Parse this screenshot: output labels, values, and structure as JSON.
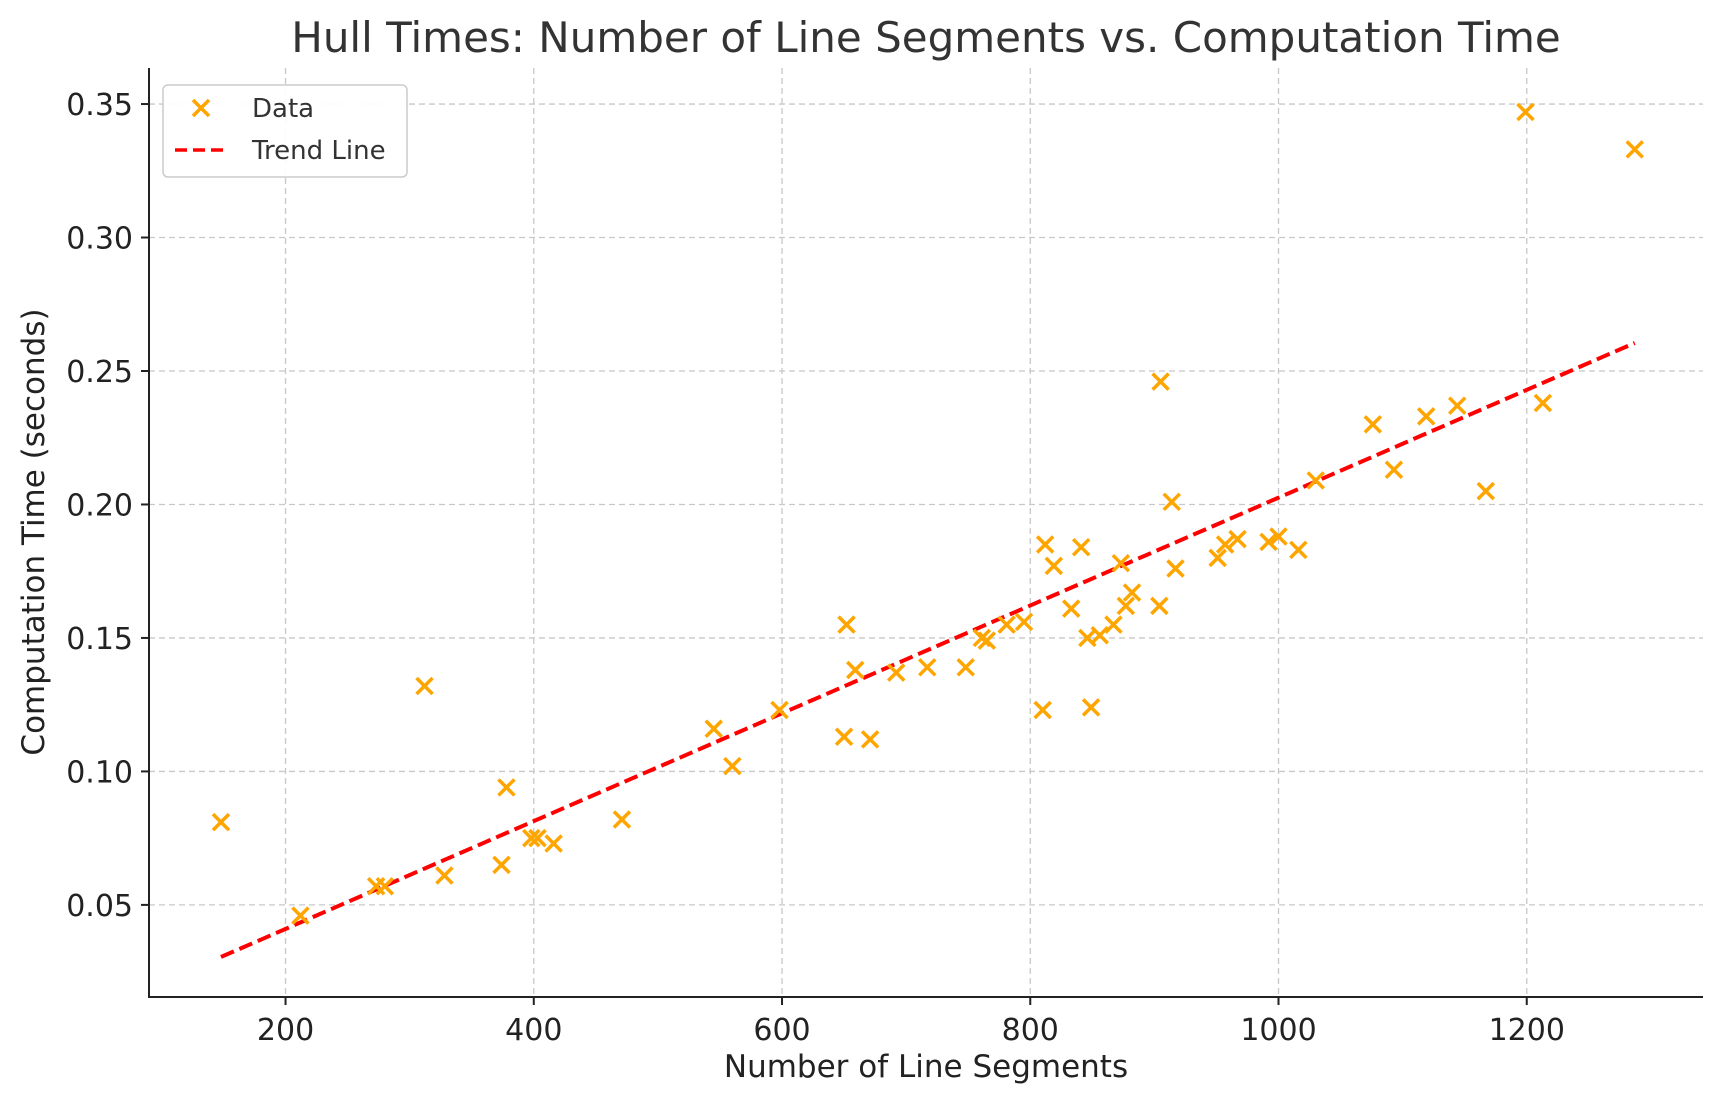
{
  "chart_data": {
    "type": "scatter",
    "title": "Hull Times: Number of Line Segments vs. Computation Time",
    "xlabel": "Number of Line Segments",
    "ylabel": "Computation Time (seconds)",
    "xlim": [
      90,
      1342
    ],
    "ylim": [
      0.0155,
      0.3635
    ],
    "xticks": [
      200,
      400,
      600,
      800,
      1000,
      1200
    ],
    "xtick_labels": [
      "200",
      "400",
      "600",
      "800",
      "1000",
      "1200"
    ],
    "yticks": [
      0.05,
      0.1,
      0.15,
      0.2,
      0.25,
      0.3,
      0.35
    ],
    "ytick_labels": [
      "0.05",
      "0.10",
      "0.15",
      "0.20",
      "0.25",
      "0.30",
      "0.35"
    ],
    "grid": true,
    "legend": "top-left",
    "colors": {
      "data": "#FFA500",
      "trend": "#FF0000"
    },
    "series": [
      {
        "name": "Data",
        "kind": "scatter",
        "marker": "x",
        "points": [
          [
            148,
            0.081
          ],
          [
            212,
            0.046
          ],
          [
            273,
            0.057
          ],
          [
            280,
            0.057
          ],
          [
            312,
            0.132
          ],
          [
            328,
            0.061
          ],
          [
            374,
            0.065
          ],
          [
            378,
            0.094
          ],
          [
            398,
            0.075
          ],
          [
            403,
            0.075
          ],
          [
            416,
            0.073
          ],
          [
            471,
            0.082
          ],
          [
            545,
            0.116
          ],
          [
            560,
            0.102
          ],
          [
            598,
            0.123
          ],
          [
            650,
            0.113
          ],
          [
            652,
            0.155
          ],
          [
            659,
            0.138
          ],
          [
            671,
            0.112
          ],
          [
            692,
            0.137
          ],
          [
            717,
            0.139
          ],
          [
            748,
            0.139
          ],
          [
            761,
            0.15
          ],
          [
            765,
            0.149
          ],
          [
            781,
            0.155
          ],
          [
            795,
            0.156
          ],
          [
            810,
            0.123
          ],
          [
            812,
            0.185
          ],
          [
            819,
            0.177
          ],
          [
            833,
            0.161
          ],
          [
            841,
            0.184
          ],
          [
            846,
            0.15
          ],
          [
            849,
            0.124
          ],
          [
            856,
            0.151
          ],
          [
            867,
            0.155
          ],
          [
            873,
            0.178
          ],
          [
            877,
            0.162
          ],
          [
            882,
            0.167
          ],
          [
            904,
            0.162
          ],
          [
            905,
            0.246
          ],
          [
            914,
            0.201
          ],
          [
            917,
            0.176
          ],
          [
            951,
            0.18
          ],
          [
            957,
            0.185
          ],
          [
            967,
            0.187
          ],
          [
            992,
            0.186
          ],
          [
            1000,
            0.188
          ],
          [
            1016,
            0.183
          ],
          [
            1030,
            0.209
          ],
          [
            1076,
            0.23
          ],
          [
            1093,
            0.213
          ],
          [
            1119,
            0.233
          ],
          [
            1144,
            0.237
          ],
          [
            1167,
            0.205
          ],
          [
            1199,
            0.347
          ],
          [
            1213,
            0.238
          ],
          [
            1287,
            0.333
          ]
        ]
      },
      {
        "name": "Trend Line",
        "kind": "line",
        "style": "dashed",
        "x": [
          148,
          1287
        ],
        "y": [
          0.0305,
          0.2605
        ]
      }
    ]
  }
}
